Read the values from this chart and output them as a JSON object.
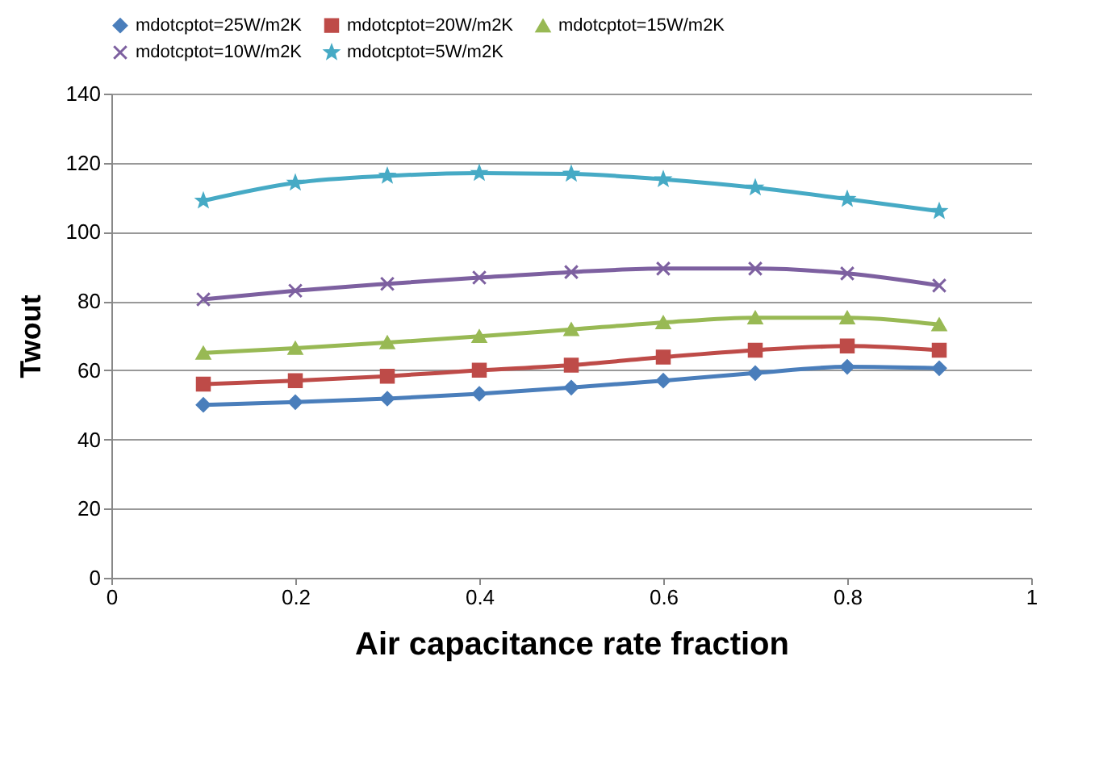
{
  "chart_data": {
    "type": "line",
    "xlabel": "Air capacitance rate fraction",
    "ylabel": "Twout",
    "x": [
      0.1,
      0.2,
      0.3,
      0.4,
      0.5,
      0.6,
      0.7,
      0.8,
      0.9
    ],
    "xlim": [
      0,
      1
    ],
    "xticks": [
      0,
      0.2,
      0.4,
      0.6,
      0.8,
      1
    ],
    "ylim": [
      0,
      140
    ],
    "yticks": [
      0,
      20,
      40,
      60,
      80,
      100,
      120,
      140
    ],
    "grid": "y",
    "legend": "top",
    "line_style": "solid",
    "series": [
      {
        "name": "mdotcptot=25W/m2K",
        "color": "#4a7ebb",
        "marker": "diamond",
        "values": [
          50,
          50.8,
          51.8,
          53.2,
          55,
          57,
          59.2,
          61,
          60.6
        ]
      },
      {
        "name": "mdotcptot=20W/m2K",
        "color": "#be4b48",
        "marker": "square",
        "values": [
          56,
          57,
          58.3,
          60,
          61.5,
          63.8,
          65.8,
          67,
          65.8
        ]
      },
      {
        "name": "mdotcptot=15W/m2K",
        "color": "#98b954",
        "marker": "triangle",
        "values": [
          65,
          66.4,
          68,
          69.8,
          71.8,
          73.8,
          75.2,
          75.2,
          73.2
        ]
      },
      {
        "name": "mdotcptot=10W/m2K",
        "color": "#7d60a0",
        "marker": "cross",
        "values": [
          80.5,
          83,
          85,
          86.8,
          88.4,
          89.4,
          89.4,
          88,
          84.5
        ]
      },
      {
        "name": "mdotcptot=5W/m2K",
        "color": "#46aac5",
        "marker": "star",
        "values": [
          109,
          114.2,
          116.2,
          117,
          116.8,
          115.2,
          112.8,
          109.5,
          106
        ]
      }
    ]
  }
}
